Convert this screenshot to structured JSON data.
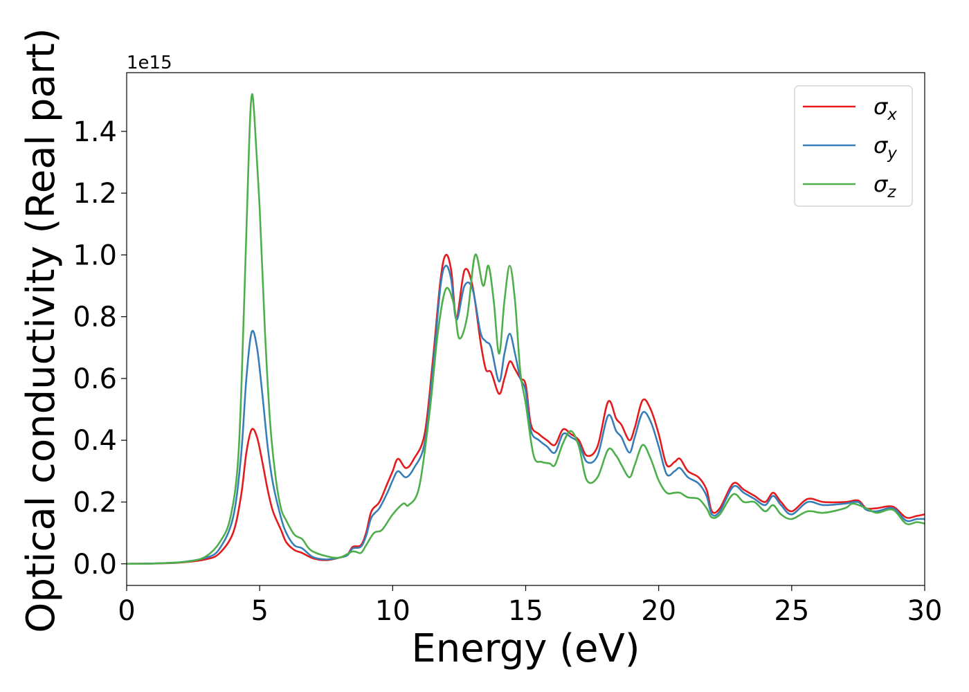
{
  "chart_data": {
    "type": "line",
    "xlabel": "Energy (eV)",
    "ylabel": "Optical conductivity (Real part)",
    "y_offset_label": "1e15",
    "xlim": [
      0,
      30
    ],
    "ylim": [
      -0.07,
      1.59
    ],
    "y_scale_factor": "1e15",
    "x_ticks": [
      0,
      5,
      10,
      15,
      20,
      25,
      30
    ],
    "x_tick_labels": [
      "0",
      "5",
      "10",
      "15",
      "20",
      "25",
      "30"
    ],
    "y_ticks": [
      0.0,
      0.2,
      0.4,
      0.6,
      0.8,
      1.0,
      1.2,
      1.4
    ],
    "y_tick_labels": [
      "0.0",
      "0.2",
      "0.4",
      "0.6",
      "0.8",
      "1.0",
      "1.2",
      "1.4"
    ],
    "grid": false,
    "legend_position": "top-right",
    "series": [
      {
        "name": "σ_x",
        "legend_symbol": "σ",
        "legend_subscript": "x",
        "color": "#e41a1c",
        "points": [
          [
            0,
            0
          ],
          [
            1,
            0.001
          ],
          [
            2,
            0.004
          ],
          [
            3,
            0.015
          ],
          [
            3.5,
            0.035
          ],
          [
            4,
            0.1
          ],
          [
            4.3,
            0.22
          ],
          [
            4.5,
            0.36
          ],
          [
            4.7,
            0.435
          ],
          [
            4.9,
            0.41
          ],
          [
            5.1,
            0.33
          ],
          [
            5.3,
            0.24
          ],
          [
            5.5,
            0.17
          ],
          [
            5.8,
            0.11
          ],
          [
            6.0,
            0.07
          ],
          [
            6.3,
            0.045
          ],
          [
            6.6,
            0.035
          ],
          [
            7.0,
            0.018
          ],
          [
            7.5,
            0.012
          ],
          [
            8.0,
            0.02
          ],
          [
            8.3,
            0.03
          ],
          [
            8.5,
            0.055
          ],
          [
            8.8,
            0.06
          ],
          [
            9.0,
            0.1
          ],
          [
            9.2,
            0.17
          ],
          [
            9.5,
            0.2
          ],
          [
            9.8,
            0.26
          ],
          [
            10.0,
            0.3
          ],
          [
            10.2,
            0.34
          ],
          [
            10.5,
            0.31
          ],
          [
            10.8,
            0.34
          ],
          [
            11.2,
            0.42
          ],
          [
            11.5,
            0.65
          ],
          [
            11.8,
            0.92
          ],
          [
            12.0,
            1.0
          ],
          [
            12.2,
            0.95
          ],
          [
            12.4,
            0.8
          ],
          [
            12.7,
            0.95
          ],
          [
            13.0,
            0.9
          ],
          [
            13.3,
            0.72
          ],
          [
            13.5,
            0.63
          ],
          [
            13.7,
            0.62
          ],
          [
            14.0,
            0.55
          ],
          [
            14.2,
            0.6
          ],
          [
            14.4,
            0.655
          ],
          [
            14.6,
            0.63
          ],
          [
            14.8,
            0.6
          ],
          [
            15.0,
            0.58
          ],
          [
            15.2,
            0.45
          ],
          [
            15.5,
            0.42
          ],
          [
            15.8,
            0.4
          ],
          [
            16.1,
            0.385
          ],
          [
            16.4,
            0.435
          ],
          [
            16.7,
            0.42
          ],
          [
            17.0,
            0.4
          ],
          [
            17.3,
            0.35
          ],
          [
            17.7,
            0.38
          ],
          [
            18.1,
            0.525
          ],
          [
            18.4,
            0.47
          ],
          [
            18.6,
            0.45
          ],
          [
            18.9,
            0.4
          ],
          [
            19.1,
            0.44
          ],
          [
            19.4,
            0.53
          ],
          [
            19.7,
            0.5
          ],
          [
            20.0,
            0.42
          ],
          [
            20.3,
            0.32
          ],
          [
            20.6,
            0.33
          ],
          [
            20.8,
            0.34
          ],
          [
            21.1,
            0.3
          ],
          [
            21.5,
            0.28
          ],
          [
            21.8,
            0.24
          ],
          [
            22.0,
            0.17
          ],
          [
            22.3,
            0.18
          ],
          [
            22.8,
            0.26
          ],
          [
            23.2,
            0.24
          ],
          [
            23.6,
            0.22
          ],
          [
            24.0,
            0.2
          ],
          [
            24.3,
            0.23
          ],
          [
            24.6,
            0.2
          ],
          [
            25.0,
            0.17
          ],
          [
            25.6,
            0.21
          ],
          [
            26.2,
            0.2
          ],
          [
            27.0,
            0.2
          ],
          [
            27.5,
            0.205
          ],
          [
            27.8,
            0.18
          ],
          [
            28.2,
            0.18
          ],
          [
            28.8,
            0.185
          ],
          [
            29.3,
            0.15
          ],
          [
            29.7,
            0.155
          ],
          [
            30.0,
            0.16
          ]
        ]
      },
      {
        "name": "σ_y",
        "legend_symbol": "σ",
        "legend_subscript": "y",
        "color": "#377eb8",
        "points": [
          [
            0,
            0
          ],
          [
            1,
            0.001
          ],
          [
            2,
            0.005
          ],
          [
            3,
            0.02
          ],
          [
            3.5,
            0.05
          ],
          [
            4,
            0.15
          ],
          [
            4.3,
            0.35
          ],
          [
            4.5,
            0.6
          ],
          [
            4.7,
            0.75
          ],
          [
            4.9,
            0.7
          ],
          [
            5.1,
            0.55
          ],
          [
            5.3,
            0.38
          ],
          [
            5.5,
            0.26
          ],
          [
            5.8,
            0.15
          ],
          [
            6.0,
            0.1
          ],
          [
            6.3,
            0.06
          ],
          [
            6.6,
            0.05
          ],
          [
            7.0,
            0.022
          ],
          [
            7.5,
            0.014
          ],
          [
            8.0,
            0.02
          ],
          [
            8.3,
            0.028
          ],
          [
            8.5,
            0.05
          ],
          [
            8.8,
            0.055
          ],
          [
            9.0,
            0.09
          ],
          [
            9.2,
            0.15
          ],
          [
            9.5,
            0.18
          ],
          [
            9.8,
            0.23
          ],
          [
            10.0,
            0.27
          ],
          [
            10.2,
            0.3
          ],
          [
            10.5,
            0.28
          ],
          [
            10.8,
            0.31
          ],
          [
            11.2,
            0.39
          ],
          [
            11.5,
            0.62
          ],
          [
            11.8,
            0.9
          ],
          [
            12.0,
            0.965
          ],
          [
            12.2,
            0.92
          ],
          [
            12.4,
            0.79
          ],
          [
            12.7,
            0.9
          ],
          [
            13.0,
            0.89
          ],
          [
            13.3,
            0.75
          ],
          [
            13.5,
            0.72
          ],
          [
            13.7,
            0.7
          ],
          [
            14.0,
            0.59
          ],
          [
            14.2,
            0.68
          ],
          [
            14.4,
            0.745
          ],
          [
            14.6,
            0.68
          ],
          [
            14.8,
            0.6
          ],
          [
            15.0,
            0.56
          ],
          [
            15.2,
            0.43
          ],
          [
            15.5,
            0.4
          ],
          [
            15.8,
            0.38
          ],
          [
            16.1,
            0.36
          ],
          [
            16.4,
            0.42
          ],
          [
            16.7,
            0.41
          ],
          [
            17.0,
            0.39
          ],
          [
            17.3,
            0.33
          ],
          [
            17.7,
            0.35
          ],
          [
            18.1,
            0.48
          ],
          [
            18.4,
            0.43
          ],
          [
            18.6,
            0.41
          ],
          [
            18.9,
            0.36
          ],
          [
            19.1,
            0.41
          ],
          [
            19.4,
            0.49
          ],
          [
            19.7,
            0.46
          ],
          [
            20.0,
            0.38
          ],
          [
            20.3,
            0.29
          ],
          [
            20.6,
            0.3
          ],
          [
            20.8,
            0.31
          ],
          [
            21.1,
            0.28
          ],
          [
            21.5,
            0.26
          ],
          [
            21.8,
            0.22
          ],
          [
            22.0,
            0.16
          ],
          [
            22.3,
            0.17
          ],
          [
            22.8,
            0.25
          ],
          [
            23.2,
            0.23
          ],
          [
            23.6,
            0.21
          ],
          [
            24.0,
            0.19
          ],
          [
            24.3,
            0.22
          ],
          [
            24.6,
            0.19
          ],
          [
            25.0,
            0.16
          ],
          [
            25.6,
            0.2
          ],
          [
            26.2,
            0.19
          ],
          [
            27.0,
            0.195
          ],
          [
            27.5,
            0.2
          ],
          [
            27.8,
            0.175
          ],
          [
            28.2,
            0.17
          ],
          [
            28.8,
            0.18
          ],
          [
            29.3,
            0.14
          ],
          [
            29.7,
            0.145
          ],
          [
            30.0,
            0.145
          ]
        ]
      },
      {
        "name": "σ_z",
        "legend_symbol": "σ",
        "legend_subscript": "z",
        "color": "#4daf4a",
        "points": [
          [
            0,
            0
          ],
          [
            1,
            0.001
          ],
          [
            2,
            0.005
          ],
          [
            2.5,
            0.01
          ],
          [
            3,
            0.025
          ],
          [
            3.5,
            0.07
          ],
          [
            3.9,
            0.15
          ],
          [
            4.2,
            0.35
          ],
          [
            4.4,
            0.8
          ],
          [
            4.6,
            1.35
          ],
          [
            4.7,
            1.515
          ],
          [
            4.8,
            1.45
          ],
          [
            5.0,
            1.15
          ],
          [
            5.2,
            0.75
          ],
          [
            5.4,
            0.45
          ],
          [
            5.6,
            0.28
          ],
          [
            5.8,
            0.18
          ],
          [
            6.0,
            0.14
          ],
          [
            6.3,
            0.095
          ],
          [
            6.6,
            0.08
          ],
          [
            6.8,
            0.055
          ],
          [
            7.0,
            0.04
          ],
          [
            7.5,
            0.025
          ],
          [
            8.0,
            0.02
          ],
          [
            8.5,
            0.04
          ],
          [
            8.8,
            0.035
          ],
          [
            9.0,
            0.06
          ],
          [
            9.3,
            0.1
          ],
          [
            9.6,
            0.11
          ],
          [
            10.0,
            0.16
          ],
          [
            10.4,
            0.195
          ],
          [
            10.6,
            0.19
          ],
          [
            11.0,
            0.25
          ],
          [
            11.4,
            0.5
          ],
          [
            11.7,
            0.75
          ],
          [
            12.0,
            0.89
          ],
          [
            12.3,
            0.84
          ],
          [
            12.5,
            0.73
          ],
          [
            12.8,
            0.8
          ],
          [
            13.1,
            1.0
          ],
          [
            13.4,
            0.9
          ],
          [
            13.6,
            0.965
          ],
          [
            13.8,
            0.85
          ],
          [
            14.0,
            0.68
          ],
          [
            14.2,
            0.85
          ],
          [
            14.4,
            0.965
          ],
          [
            14.6,
            0.85
          ],
          [
            14.8,
            0.62
          ],
          [
            15.0,
            0.52
          ],
          [
            15.3,
            0.35
          ],
          [
            15.6,
            0.33
          ],
          [
            15.9,
            0.325
          ],
          [
            16.1,
            0.32
          ],
          [
            16.4,
            0.39
          ],
          [
            16.7,
            0.43
          ],
          [
            17.0,
            0.38
          ],
          [
            17.3,
            0.27
          ],
          [
            17.7,
            0.28
          ],
          [
            18.1,
            0.37
          ],
          [
            18.4,
            0.35
          ],
          [
            18.6,
            0.32
          ],
          [
            18.9,
            0.28
          ],
          [
            19.1,
            0.32
          ],
          [
            19.4,
            0.385
          ],
          [
            19.7,
            0.34
          ],
          [
            20.0,
            0.27
          ],
          [
            20.3,
            0.23
          ],
          [
            20.6,
            0.23
          ],
          [
            20.8,
            0.23
          ],
          [
            21.1,
            0.215
          ],
          [
            21.5,
            0.21
          ],
          [
            21.8,
            0.18
          ],
          [
            22.0,
            0.15
          ],
          [
            22.3,
            0.16
          ],
          [
            22.8,
            0.225
          ],
          [
            23.2,
            0.2
          ],
          [
            23.6,
            0.2
          ],
          [
            24.0,
            0.17
          ],
          [
            24.3,
            0.19
          ],
          [
            24.6,
            0.16
          ],
          [
            25.0,
            0.145
          ],
          [
            25.6,
            0.17
          ],
          [
            26.2,
            0.165
          ],
          [
            27.0,
            0.18
          ],
          [
            27.3,
            0.195
          ],
          [
            27.8,
            0.18
          ],
          [
            28.2,
            0.165
          ],
          [
            28.8,
            0.175
          ],
          [
            29.3,
            0.13
          ],
          [
            29.7,
            0.135
          ],
          [
            30.0,
            0.13
          ]
        ]
      }
    ]
  }
}
